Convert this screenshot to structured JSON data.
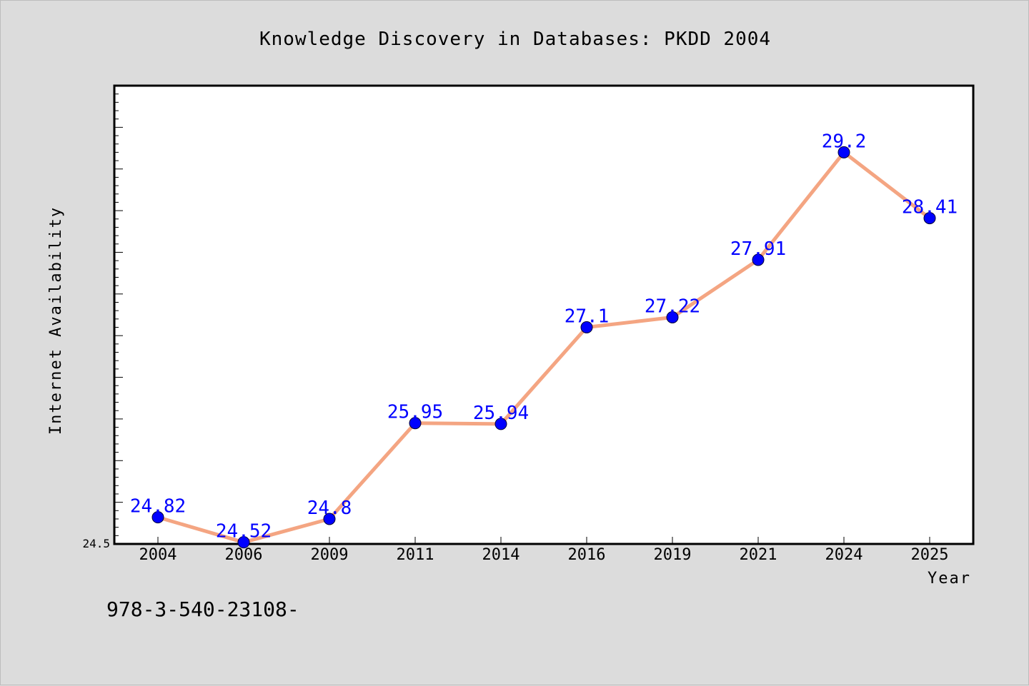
{
  "chart_data": {
    "type": "line",
    "title": "Knowledge Discovery in Databases: PKDD 2004",
    "xlabel": "Year",
    "ylabel": "Internet Availability",
    "categories": [
      "2004",
      "2006",
      "2009",
      "2011",
      "2014",
      "2016",
      "2019",
      "2021",
      "2024",
      "2025"
    ],
    "series": [
      {
        "values": [
          24.82,
          24.52,
          24.8,
          25.95,
          25.94,
          27.1,
          27.22,
          27.91,
          29.2,
          28.41
        ],
        "data_labels": [
          "24.82",
          "24.52",
          "24.8",
          "25.95",
          "25.94",
          "27.1",
          "27.22",
          "27.91",
          "29.2",
          "28.41"
        ],
        "line_color": "#f4a582",
        "marker_color": "#0000ff"
      }
    ],
    "y_tick_labels": [
      "24.5"
    ],
    "ylim": [
      24.5,
      30.0
    ],
    "grid": false,
    "legend": "none"
  },
  "footer_text": "978-3-540-23108-"
}
